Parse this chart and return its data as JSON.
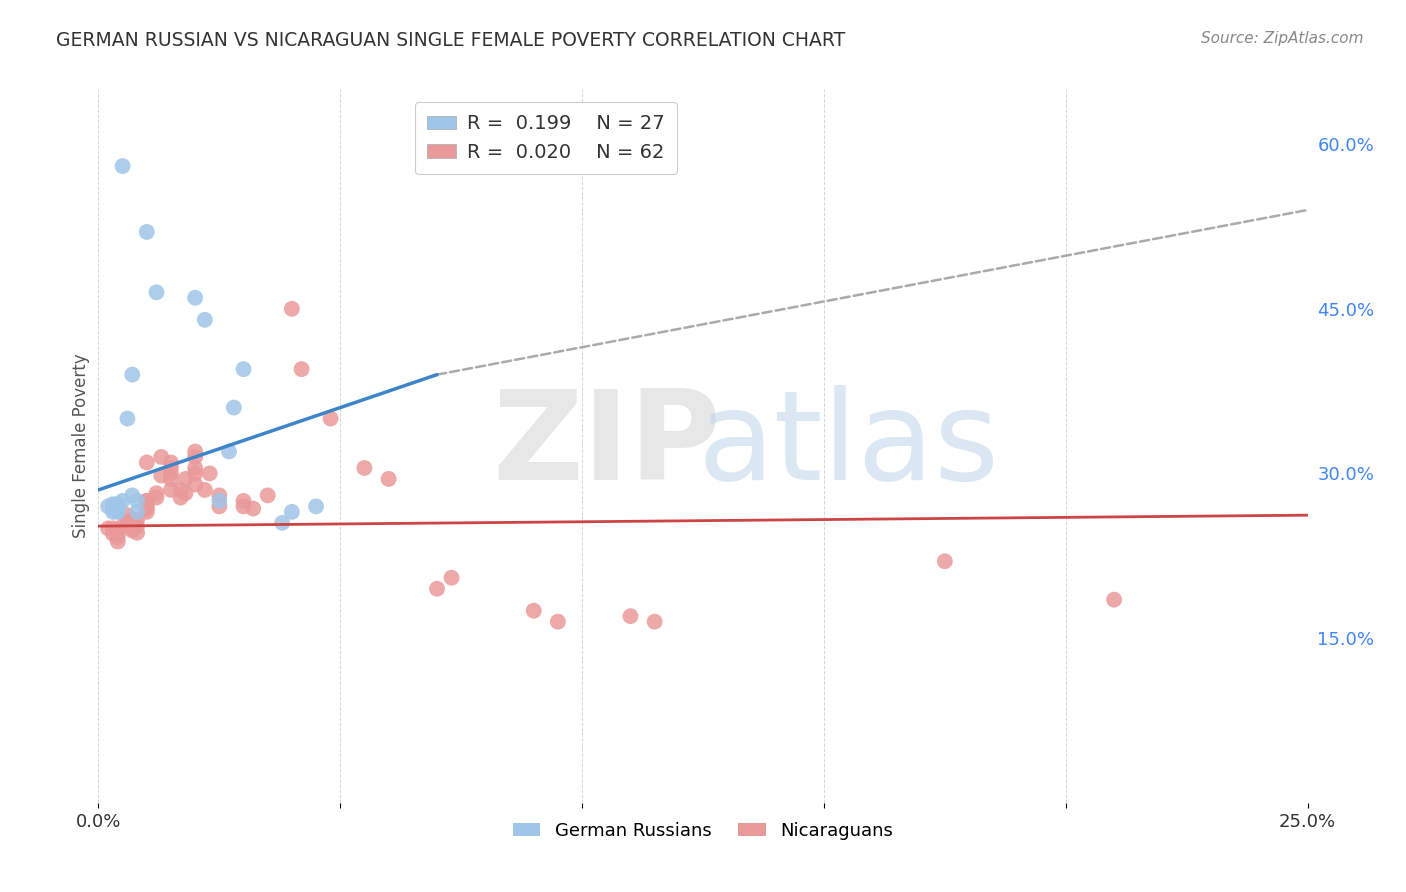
{
  "title": "GERMAN RUSSIAN VS NICARAGUAN SINGLE FEMALE POVERTY CORRELATION CHART",
  "source": "Source: ZipAtlas.com",
  "ylabel": "Single Female Poverty",
  "right_yticks": [
    "60.0%",
    "45.0%",
    "30.0%",
    "15.0%"
  ],
  "right_ytick_vals": [
    0.6,
    0.45,
    0.3,
    0.15
  ],
  "xlim": [
    0.0,
    0.25
  ],
  "ylim": [
    0.0,
    0.65
  ],
  "blue_color": "#9fc5e8",
  "pink_color": "#ea9999",
  "blue_line_color": "#3d85c8",
  "pink_line_color": "#cc4444",
  "dashed_line_color": "#aaaaaa",
  "german_russian_x": [
    0.002,
    0.003,
    0.003,
    0.003,
    0.004,
    0.004,
    0.004,
    0.004,
    0.004,
    0.005,
    0.005,
    0.006,
    0.007,
    0.007,
    0.008,
    0.008,
    0.01,
    0.012,
    0.02,
    0.022,
    0.025,
    0.027,
    0.028,
    0.03,
    0.038,
    0.04,
    0.045
  ],
  "german_russian_y": [
    0.27,
    0.268,
    0.272,
    0.265,
    0.27,
    0.268,
    0.266,
    0.272,
    0.265,
    0.58,
    0.275,
    0.35,
    0.39,
    0.28,
    0.275,
    0.265,
    0.52,
    0.465,
    0.46,
    0.44,
    0.275,
    0.32,
    0.36,
    0.395,
    0.255,
    0.265,
    0.27
  ],
  "nicaraguan_x": [
    0.002,
    0.003,
    0.003,
    0.004,
    0.004,
    0.004,
    0.004,
    0.005,
    0.006,
    0.006,
    0.007,
    0.007,
    0.007,
    0.007,
    0.008,
    0.008,
    0.008,
    0.01,
    0.01,
    0.01,
    0.01,
    0.01,
    0.01,
    0.012,
    0.012,
    0.013,
    0.013,
    0.015,
    0.015,
    0.015,
    0.015,
    0.015,
    0.017,
    0.017,
    0.018,
    0.018,
    0.02,
    0.02,
    0.02,
    0.02,
    0.02,
    0.022,
    0.023,
    0.025,
    0.025,
    0.03,
    0.03,
    0.032,
    0.035,
    0.04,
    0.042,
    0.048,
    0.055,
    0.06,
    0.07,
    0.073,
    0.09,
    0.095,
    0.11,
    0.115,
    0.175,
    0.21
  ],
  "nicaraguan_y": [
    0.25,
    0.245,
    0.25,
    0.245,
    0.248,
    0.242,
    0.238,
    0.252,
    0.262,
    0.255,
    0.258,
    0.25,
    0.248,
    0.254,
    0.252,
    0.246,
    0.258,
    0.31,
    0.275,
    0.275,
    0.27,
    0.268,
    0.265,
    0.282,
    0.278,
    0.298,
    0.315,
    0.31,
    0.305,
    0.3,
    0.295,
    0.285,
    0.285,
    0.278,
    0.282,
    0.295,
    0.32,
    0.315,
    0.305,
    0.3,
    0.29,
    0.285,
    0.3,
    0.27,
    0.28,
    0.275,
    0.27,
    0.268,
    0.28,
    0.45,
    0.395,
    0.35,
    0.305,
    0.295,
    0.195,
    0.205,
    0.175,
    0.165,
    0.17,
    0.165,
    0.22,
    0.185
  ],
  "blue_line_x0": 0.0,
  "blue_line_y0": 0.285,
  "blue_line_x1": 0.07,
  "blue_line_y1": 0.39,
  "dashed_line_x0": 0.07,
  "dashed_line_y0": 0.39,
  "dashed_line_x1": 0.25,
  "dashed_line_y1": 0.54,
  "pink_line_x0": 0.0,
  "pink_line_y0": 0.252,
  "pink_line_x1": 0.25,
  "pink_line_y1": 0.262
}
